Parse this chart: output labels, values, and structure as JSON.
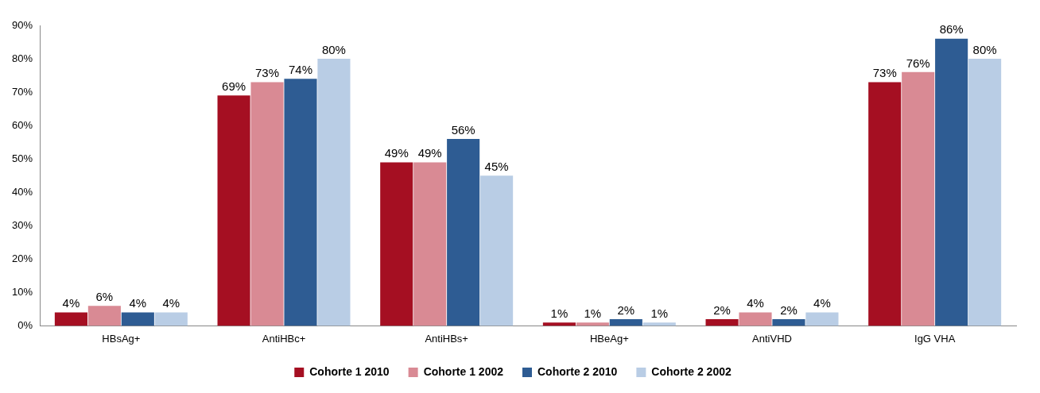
{
  "chart_data": {
    "type": "bar",
    "categories": [
      "HBsAg+",
      "AntiHBc+",
      "AntiHBs+",
      "HBeAg+",
      "AntiVHD",
      "IgG VHA"
    ],
    "series": [
      {
        "name": "Cohorte 1 2010",
        "color": "#a50f22",
        "values": [
          4,
          69,
          49,
          1,
          2,
          73
        ],
        "value_labels": [
          "4%",
          "69%",
          "49%",
          "1%",
          "2%",
          "73%"
        ]
      },
      {
        "name": "Cohorte 1 2002",
        "color": "#d98a94",
        "values": [
          6,
          73,
          49,
          1,
          4,
          76
        ],
        "value_labels": [
          "6%",
          "73%",
          "49%",
          "1%",
          "4%",
          "76%"
        ]
      },
      {
        "name": "Cohorte 2 2010",
        "color": "#2e5c93",
        "values": [
          4,
          74,
          56,
          2,
          2,
          86
        ],
        "value_labels": [
          "4%",
          "74%",
          "56%",
          "2%",
          "2%",
          "86%"
        ]
      },
      {
        "name": "Cohorte 2 2002",
        "color": "#b9cde5",
        "values": [
          4,
          80,
          45,
          1,
          4,
          80
        ],
        "value_labels": [
          "4%",
          "80%",
          "45%",
          "1%",
          "4%",
          "80%"
        ]
      }
    ],
    "ylim": [
      0,
      90
    ],
    "yticks": [
      {
        "value": 0,
        "label": "0%"
      },
      {
        "value": 10,
        "label": "10%"
      },
      {
        "value": 20,
        "label": "20%"
      },
      {
        "value": 30,
        "label": "30%"
      },
      {
        "value": 40,
        "label": "40%"
      },
      {
        "value": 50,
        "label": "50%"
      },
      {
        "value": 60,
        "label": "60%"
      },
      {
        "value": 70,
        "label": "70%"
      },
      {
        "value": 80,
        "label": "80%"
      },
      {
        "value": 90,
        "label": "90%"
      }
    ],
    "grid": false,
    "legend": "bottom"
  }
}
